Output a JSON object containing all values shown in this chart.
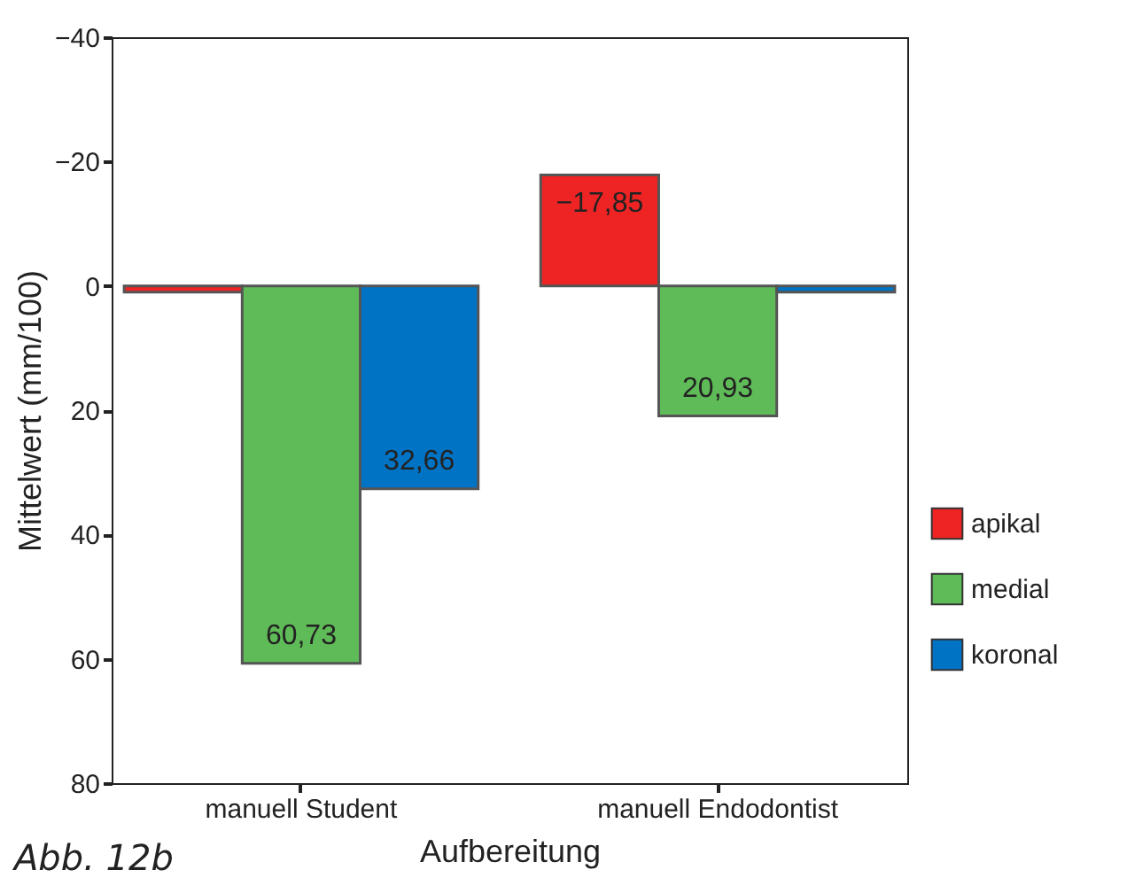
{
  "chart_data": {
    "type": "bar",
    "xlabel": "Aufbereitung",
    "ylabel": "Mittelwert (mm/100)",
    "categories": [
      "manuell Student",
      "manuell Endodontist"
    ],
    "series": [
      {
        "name": "apikal",
        "color": "#ee2424",
        "values": [
          1,
          -17.85
        ],
        "value_labels": [
          null,
          "−17,85"
        ]
      },
      {
        "name": "medial",
        "color": "#5fbb57",
        "values": [
          60.73,
          20.93
        ],
        "value_labels": [
          "60,73",
          "20,93"
        ]
      },
      {
        "name": "koronal",
        "color": "#0073c4",
        "values": [
          32.66,
          1
        ],
        "value_labels": [
          "32,66",
          null
        ]
      }
    ],
    "ylim": [
      80,
      -40
    ],
    "yticks": [
      {
        "value": -40,
        "label": "−40"
      },
      {
        "value": -20,
        "label": "−20"
      },
      0,
      20,
      40,
      60,
      80
    ],
    "legend": "bottom right",
    "grid": false,
    "annotations": [
      "Abb. 12b"
    ]
  }
}
